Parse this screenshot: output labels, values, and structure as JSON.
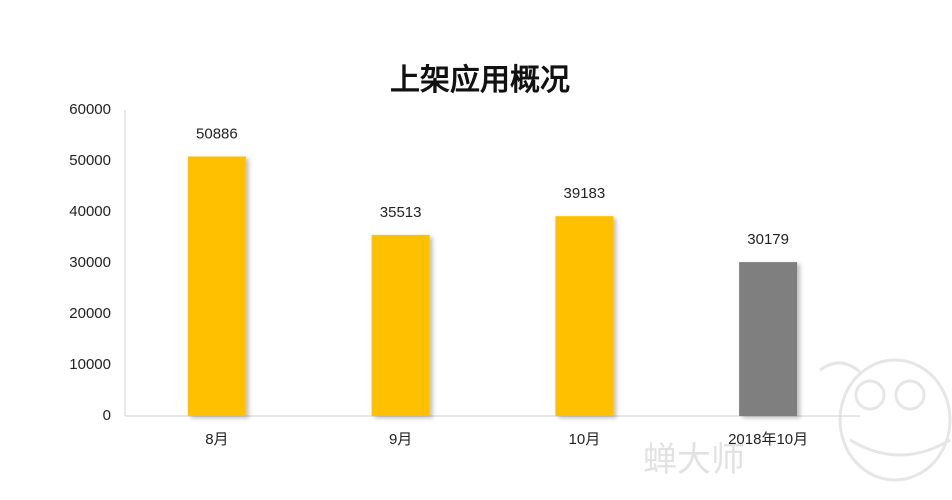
{
  "chart_data": {
    "type": "bar",
    "title": "上架应用概况",
    "categories": [
      "8月",
      "9月",
      "10月",
      "2018年10月"
    ],
    "values": [
      50886,
      35513,
      39183,
      30179
    ],
    "colors": [
      "#ffc000",
      "#ffc000",
      "#ffc000",
      "#7f7f7f"
    ],
    "ylim": [
      0,
      60000
    ],
    "yticks": [
      0,
      10000,
      20000,
      30000,
      40000,
      50000,
      60000
    ],
    "grid": false,
    "data_labels": true
  },
  "watermark": "蝉大师"
}
